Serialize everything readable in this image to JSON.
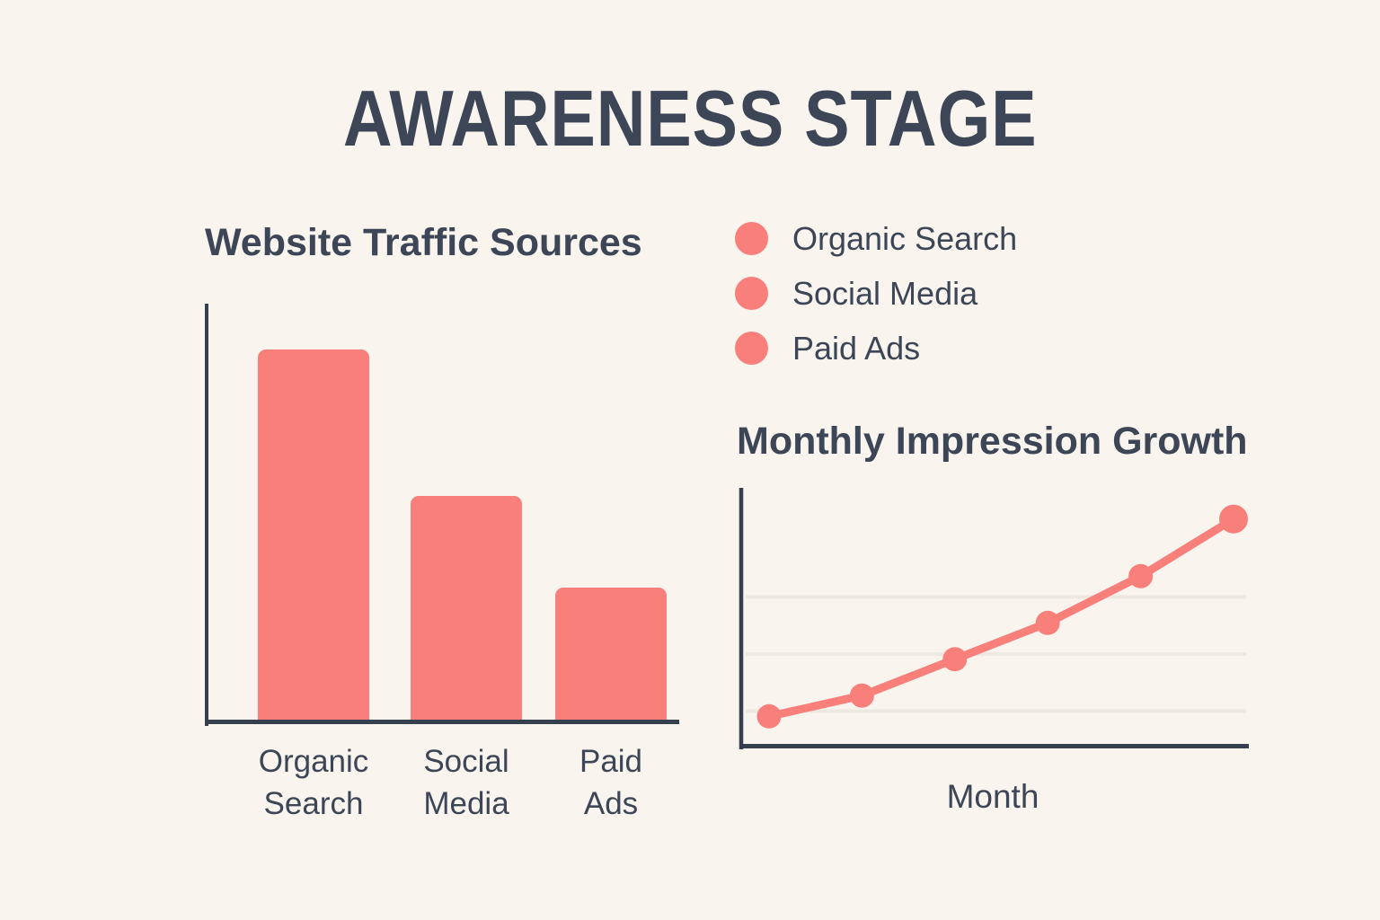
{
  "page": {
    "title": "AWARENESS STAGE",
    "colors": {
      "background": "#F9F5EE",
      "text": "#3C4657",
      "accent": "#F9807A",
      "axis": "#363F4D",
      "gridline": "#EDE8E0"
    }
  },
  "legend": {
    "position": "top-right",
    "items": [
      {
        "label": "Organic Search",
        "marker": "circle-icon",
        "color": "#F9807A"
      },
      {
        "label": "Social Media",
        "marker": "circle-icon",
        "color": "#F9807A"
      },
      {
        "label": "Paid Ads",
        "marker": "circle-icon",
        "color": "#F9807A"
      }
    ]
  },
  "chart_data": [
    {
      "type": "bar",
      "title": "Website Traffic Sources",
      "categories": [
        "Organic Search",
        "Social Media",
        "Paid Ads"
      ],
      "values": [
        89,
        54,
        32
      ],
      "ylim": [
        0,
        100
      ],
      "ylabel": "",
      "xlabel": "",
      "units": "relative share (axis unlabeled)",
      "bar_color": "#F9807A",
      "grid": false
    },
    {
      "type": "line",
      "title": "Monthly Impression Growth",
      "xlabel": "Month",
      "ylabel": "",
      "x": [
        1,
        2,
        3,
        4,
        5,
        6
      ],
      "values": [
        12,
        20,
        34,
        48,
        66,
        88
      ],
      "ylim": [
        0,
        100
      ],
      "gridline_values": [
        14,
        36,
        58
      ],
      "line_color": "#F9807A",
      "marker": "circle",
      "grid": true
    }
  ]
}
